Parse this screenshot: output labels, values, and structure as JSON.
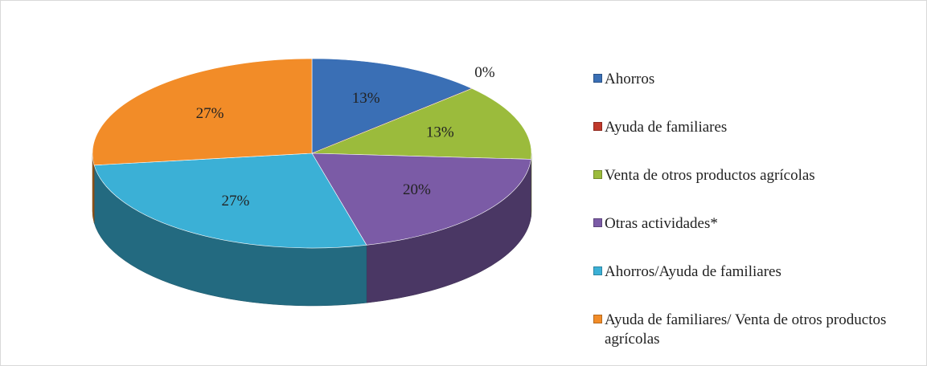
{
  "chart_data": {
    "type": "pie",
    "categories": [
      "Ahorros",
      "Ayuda de familiares",
      "Venta de otros productos agrícolas",
      "Otras actividades*",
      "Ahorros/Ayuda de familiares",
      "Ayuda de familiares/ Venta de otros productos agrícolas"
    ],
    "values": [
      13,
      0,
      13,
      20,
      27,
      27
    ],
    "value_labels": [
      "13%",
      "0%",
      "13%",
      "20%",
      "27%",
      "27%"
    ],
    "colors": [
      "#3a6fb5",
      "#c0392b",
      "#9bbb3c",
      "#7b5ba6",
      "#3bb0d6",
      "#f28c28"
    ],
    "legend": "right"
  }
}
